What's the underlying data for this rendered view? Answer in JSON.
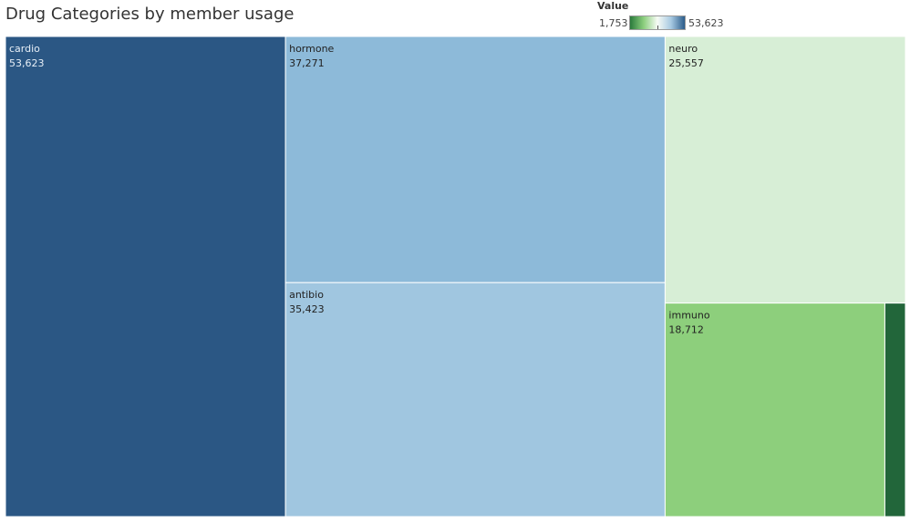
{
  "title": "Drug Categories by member usage",
  "legend": {
    "title": "Value",
    "min_label": "1,753",
    "max_label": "53,623",
    "gradient_colors": [
      "#2a7a3b",
      "#8ccf7e",
      "#f7fbf5",
      "#a7c9e2",
      "#2b5c8a"
    ]
  },
  "chart_data": {
    "type": "treemap",
    "title": "Drug Categories by member usage",
    "color_legend": {
      "title": "Value",
      "min": 1753,
      "max": 53623
    },
    "items": [
      {
        "label": "cardio",
        "value": 53623,
        "value_label": "53,623",
        "color": "#2b5784",
        "text_color": "#e6eef6"
      },
      {
        "label": "hormone",
        "value": 37271,
        "value_label": "37,271",
        "color": "#8dbad9",
        "text_color": "#222222"
      },
      {
        "label": "antibio",
        "value": 35423,
        "value_label": "35,423",
        "color": "#a0c6e0",
        "text_color": "#222222"
      },
      {
        "label": "neuro",
        "value": 25557,
        "value_label": "25,557",
        "color": "#d7eed6",
        "text_color": "#222222"
      },
      {
        "label": "immuno",
        "value": 18712,
        "value_label": "18,712",
        "color": "#8dcf7c",
        "text_color": "#222222"
      },
      {
        "label": "",
        "value": 1753,
        "value_label": "",
        "color": "#22663a",
        "text_color": "#ffffff"
      }
    ]
  }
}
